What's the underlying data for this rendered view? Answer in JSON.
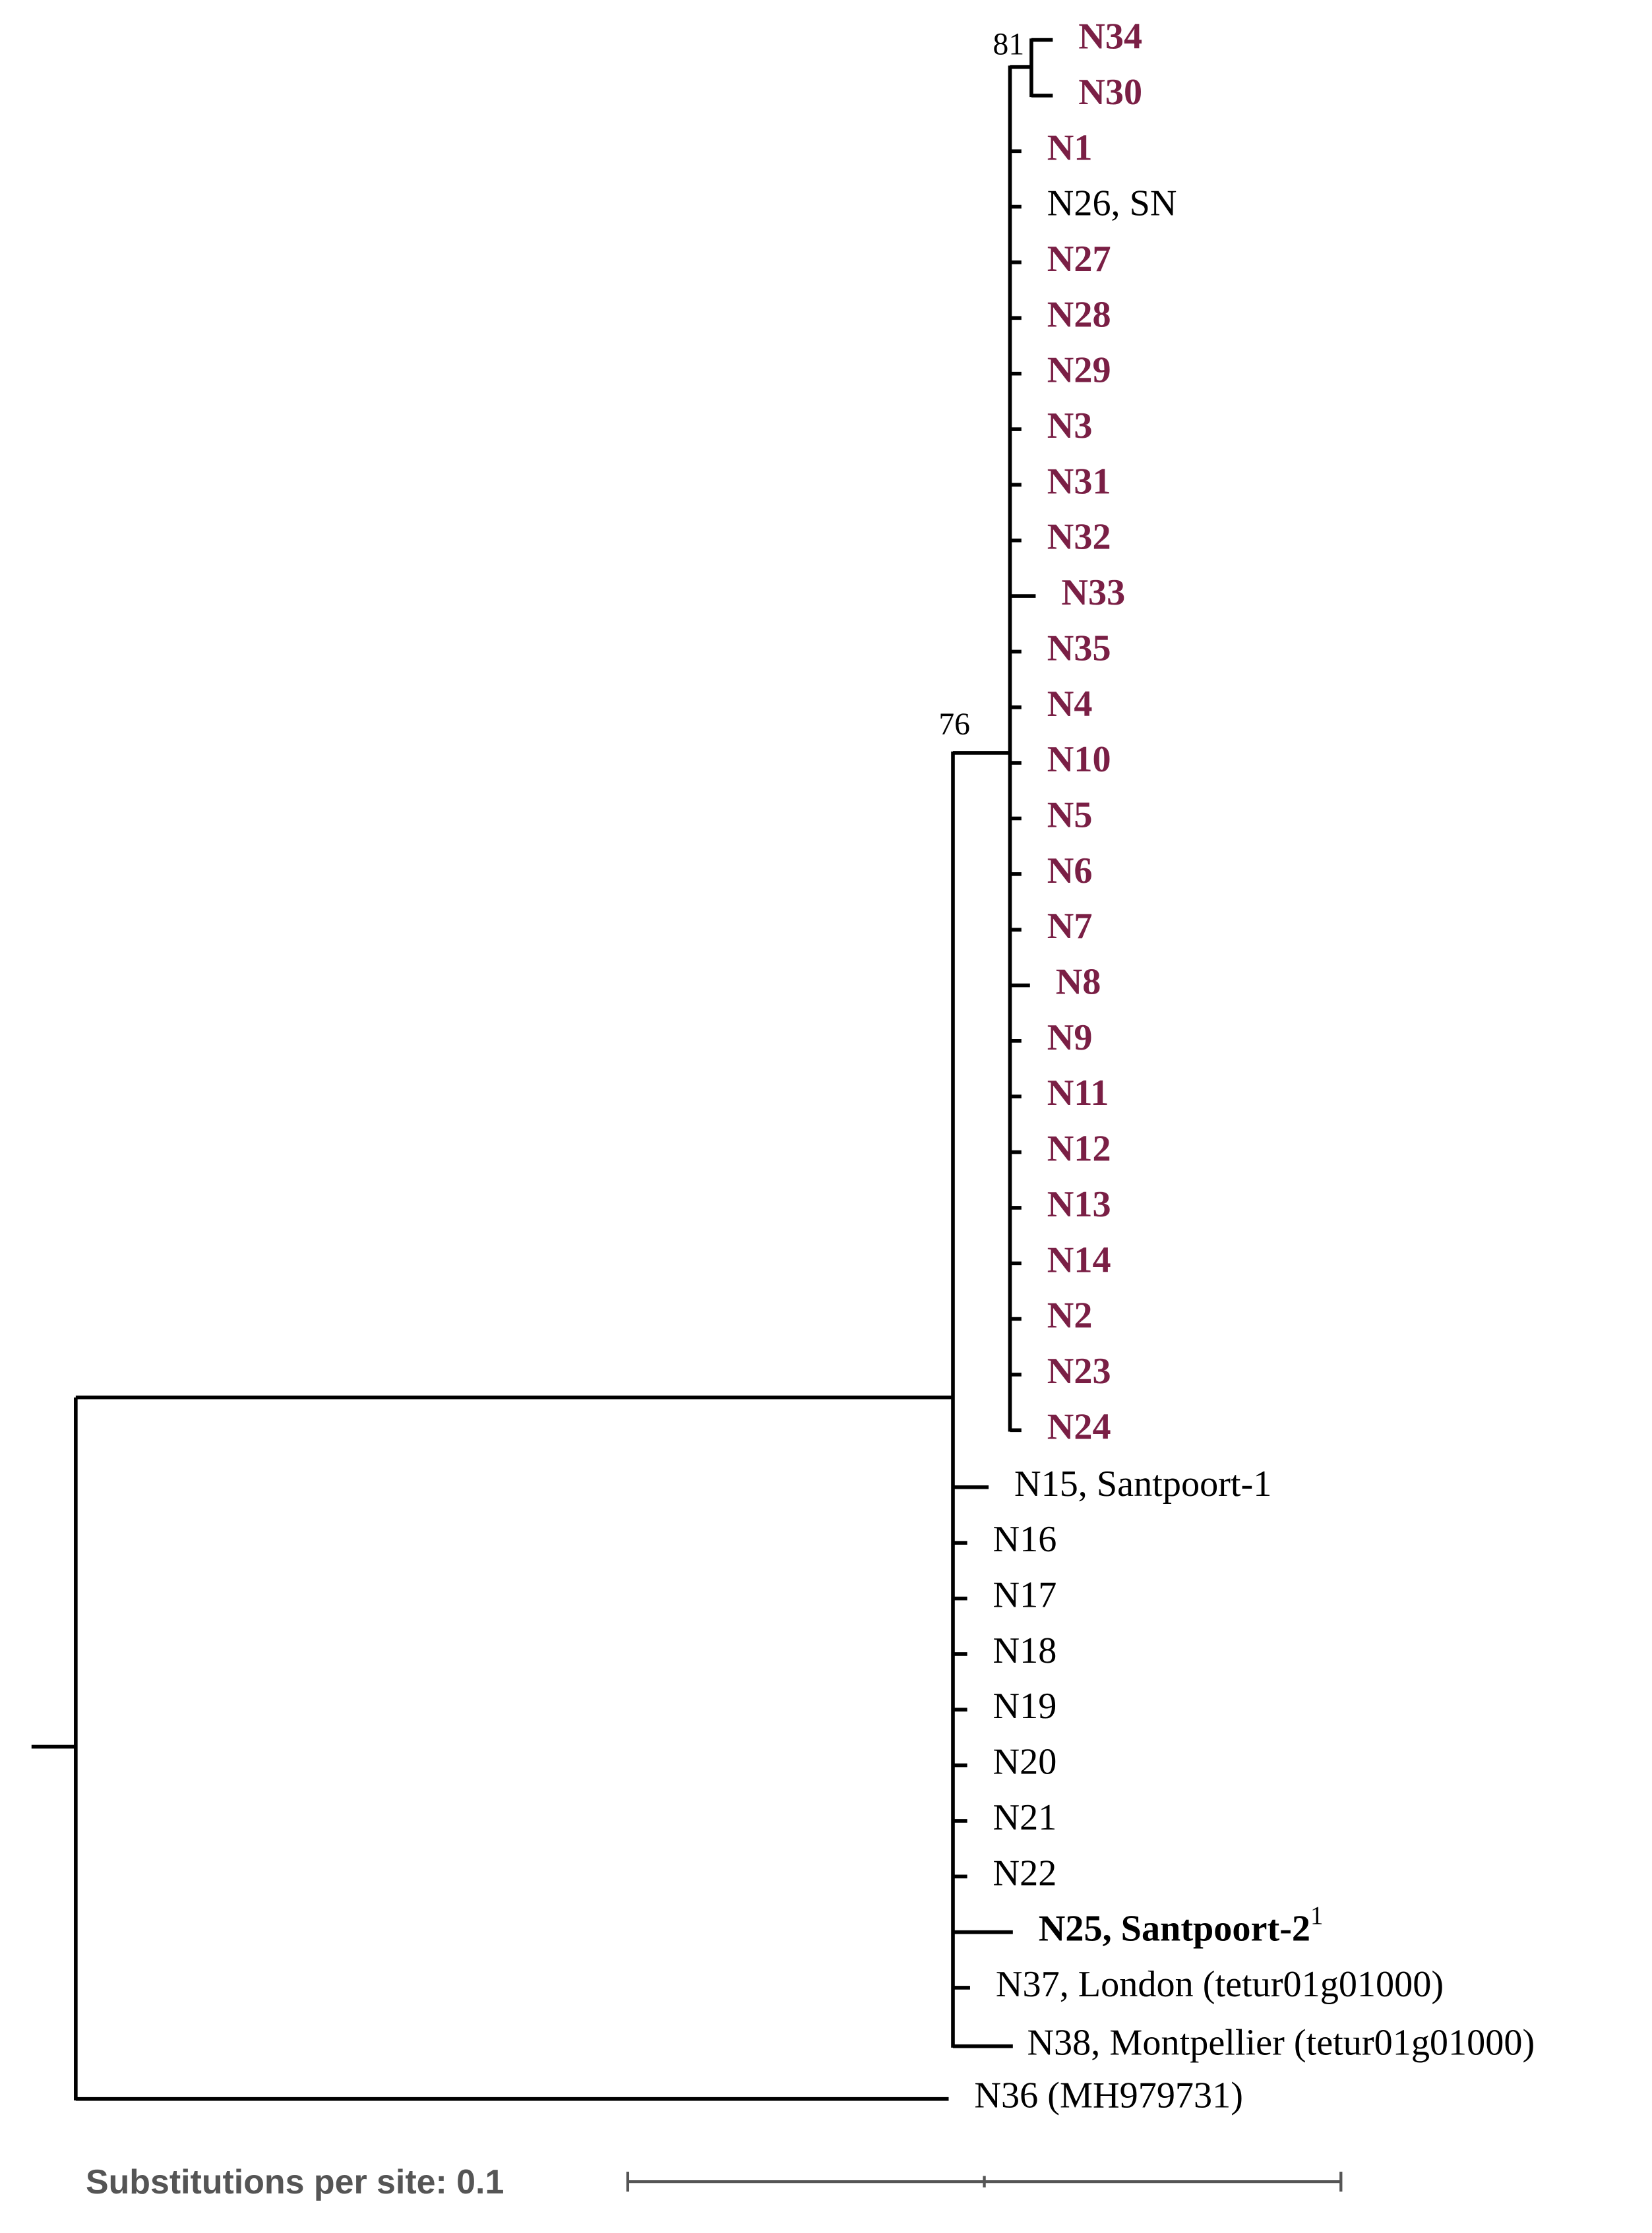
{
  "bootstrap": [
    81,
    76
  ],
  "leaves": [
    {
      "label": "N34",
      "bold": true,
      "color": "#7a1f45"
    },
    {
      "label": "N30",
      "bold": true,
      "color": "#7a1f45"
    },
    {
      "label": "N1",
      "bold": true,
      "color": "#7a1f45"
    },
    {
      "label": "N26, SN",
      "bold": false,
      "color": "#000000"
    },
    {
      "label": "N27",
      "bold": true,
      "color": "#7a1f45"
    },
    {
      "label": "N28",
      "bold": true,
      "color": "#7a1f45"
    },
    {
      "label": "N29",
      "bold": true,
      "color": "#7a1f45"
    },
    {
      "label": "N3",
      "bold": true,
      "color": "#7a1f45"
    },
    {
      "label": "N31",
      "bold": true,
      "color": "#7a1f45"
    },
    {
      "label": "N32",
      "bold": true,
      "color": "#7a1f45"
    },
    {
      "label": "N33",
      "bold": true,
      "color": "#7a1f45"
    },
    {
      "label": "N35",
      "bold": true,
      "color": "#7a1f45"
    },
    {
      "label": "N4",
      "bold": true,
      "color": "#7a1f45"
    },
    {
      "label": "N10",
      "bold": true,
      "color": "#7a1f45"
    },
    {
      "label": "N5",
      "bold": true,
      "color": "#7a1f45"
    },
    {
      "label": "N6",
      "bold": true,
      "color": "#7a1f45"
    },
    {
      "label": "N7",
      "bold": true,
      "color": "#7a1f45"
    },
    {
      "label": "N8",
      "bold": true,
      "color": "#7a1f45"
    },
    {
      "label": "N9",
      "bold": true,
      "color": "#7a1f45"
    },
    {
      "label": "N11",
      "bold": true,
      "color": "#7a1f45"
    },
    {
      "label": "N12",
      "bold": true,
      "color": "#7a1f45"
    },
    {
      "label": "N13",
      "bold": true,
      "color": "#7a1f45"
    },
    {
      "label": "N14",
      "bold": true,
      "color": "#7a1f45"
    },
    {
      "label": "N2",
      "bold": true,
      "color": "#7a1f45"
    },
    {
      "label": "N23",
      "bold": true,
      "color": "#7a1f45"
    },
    {
      "label": "N24",
      "bold": true,
      "color": "#7a1f45"
    },
    {
      "label": "N15, Santpoort-1",
      "bold": false,
      "color": "#000000"
    },
    {
      "label": "N16",
      "bold": false,
      "color": "#000000"
    },
    {
      "label": "N17",
      "bold": false,
      "color": "#000000"
    },
    {
      "label": "N18",
      "bold": false,
      "color": "#000000"
    },
    {
      "label": "N19",
      "bold": false,
      "color": "#000000"
    },
    {
      "label": "N20",
      "bold": false,
      "color": "#000000"
    },
    {
      "label": "N21",
      "bold": false,
      "color": "#000000"
    },
    {
      "label": "N22",
      "bold": false,
      "color": "#000000"
    },
    {
      "label": "N25, Santpoort-2",
      "sup": "1",
      "bold": true,
      "color": "#000000"
    },
    {
      "label": "N37, London (tetur01g01000)",
      "bold": false,
      "color": "#000000"
    },
    {
      "label": "N38, Montpellier (tetur01g01000)",
      "bold": false,
      "color": "#000000"
    },
    {
      "label": "N36 (MH979731)",
      "bold": false,
      "color": "#000000"
    }
  ],
  "scale_bar": {
    "label": "Substitutions per site: 0.1"
  }
}
